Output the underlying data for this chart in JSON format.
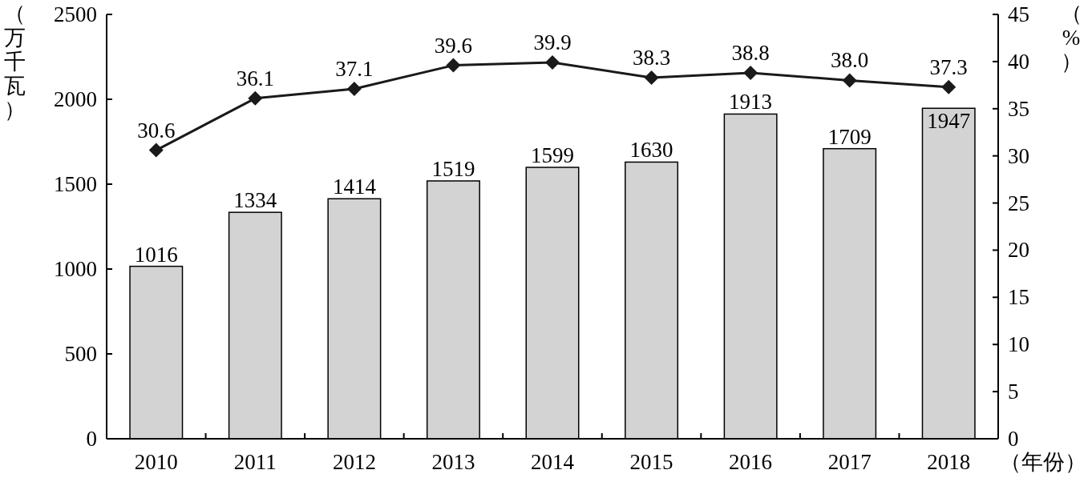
{
  "chart_data": {
    "type": "bar",
    "categories": [
      "2010",
      "2011",
      "2012",
      "2013",
      "2014",
      "2015",
      "2016",
      "2017",
      "2018"
    ],
    "series": [
      {
        "color": "#d3d3d3",
        "values": [
          1016,
          1334,
          1414,
          1519,
          1599,
          1630,
          1913,
          1709,
          1947
        ]
      },
      {
        "type": "line",
        "axis": "y2",
        "color": "#1a1a1a",
        "marker": "diamond",
        "values": [
          30.6,
          36.1,
          37.1,
          39.6,
          39.9,
          38.3,
          38.8,
          38.0,
          37.3
        ],
        "value_labels": [
          "30.6",
          "36.1",
          "37.1",
          "39.6",
          "39.9",
          "38.3",
          "38.8",
          "38.0",
          "37.3"
        ]
      }
    ],
    "ylabel": "（万千瓦）",
    "y2label": "（%）",
    "xlabel": "（年份）",
    "ylim": [
      0,
      2500
    ],
    "yticks": [
      0,
      500,
      1000,
      1500,
      2000,
      2500
    ],
    "y2lim": [
      0,
      45
    ],
    "y2ticks": [
      0,
      5,
      10,
      15,
      20,
      25,
      30,
      35,
      40,
      45
    ],
    "data_labels": true,
    "grid": false
  }
}
